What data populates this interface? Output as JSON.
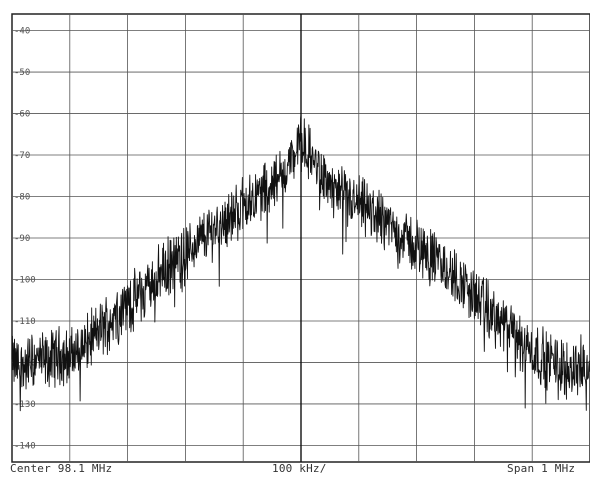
{
  "chart_data": {
    "type": "line",
    "title": "",
    "xlabel": "",
    "ylabel": "",
    "x_units": "MHz",
    "xlim": [
      97.6,
      98.6
    ],
    "ylim": [
      -144,
      -36
    ],
    "y_ticks": [
      -40,
      -50,
      -60,
      -70,
      -80,
      -90,
      -100,
      -110,
      -120,
      -130,
      -140
    ],
    "y_tick_labels": [
      "-40",
      "-50",
      "-60",
      "-70",
      "-80",
      "-90",
      "-100",
      "-110",
      "-120",
      "-130",
      "-140"
    ],
    "grid": true,
    "grid_divisions_x": 10,
    "legend": "none",
    "trace_color": "#111111",
    "grid_color": "#555555",
    "center_marker_x": 98.1,
    "series": [
      {
        "x": [
          97.6,
          97.62,
          97.64,
          97.66,
          97.68,
          97.7,
          97.72,
          97.74,
          97.76,
          97.78,
          97.8,
          97.82,
          97.84,
          97.86,
          97.88,
          97.9,
          97.92,
          97.94,
          97.96,
          97.98,
          98.0,
          98.02,
          98.04,
          98.06,
          98.08,
          98.1,
          98.12,
          98.14,
          98.16,
          98.18,
          98.2,
          98.22,
          98.24,
          98.26,
          98.28,
          98.3,
          98.32,
          98.34,
          98.36,
          98.38,
          98.4,
          98.42,
          98.44,
          98.46,
          98.48,
          98.5,
          98.52,
          98.54,
          98.56,
          98.58,
          98.6
        ],
        "values": [
          -120,
          -121,
          -119,
          -120,
          -118,
          -119,
          -116,
          -114,
          -111,
          -108,
          -106,
          -104,
          -101,
          -98,
          -96,
          -94,
          -91,
          -89,
          -86,
          -85,
          -82,
          -80,
          -78,
          -76,
          -72,
          -67,
          -71,
          -76,
          -79,
          -81,
          -82,
          -84,
          -85,
          -88,
          -90,
          -92,
          -94,
          -96,
          -99,
          -101,
          -104,
          -107,
          -110,
          -112,
          -115,
          -117,
          -119,
          -120,
          -121,
          -121,
          -121
        ]
      }
    ]
  },
  "footer": {
    "center": "Center 98.1 MHz",
    "div": "100 kHz/",
    "span": "Span 1 MHz"
  }
}
